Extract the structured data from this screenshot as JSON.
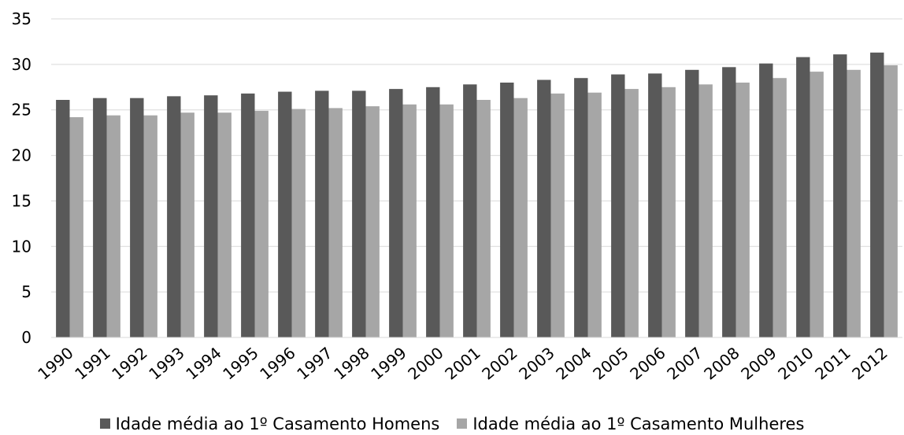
{
  "chart_data": {
    "type": "bar",
    "categories": [
      "1990",
      "1991",
      "1992",
      "1993",
      "1994",
      "1995",
      "1996",
      "1997",
      "1998",
      "1999",
      "2000",
      "2001",
      "2002",
      "2003",
      "2004",
      "2005",
      "2006",
      "2007",
      "2008",
      "2009",
      "2010",
      "2011",
      "2012"
    ],
    "series": [
      {
        "name": "Idade média ao 1º Casamento Homens",
        "color": "#595959",
        "values": [
          26.1,
          26.3,
          26.3,
          26.5,
          26.6,
          26.8,
          27.0,
          27.1,
          27.1,
          27.3,
          27.5,
          27.8,
          28.0,
          28.3,
          28.5,
          28.9,
          29.0,
          29.4,
          29.7,
          30.1,
          30.8,
          31.1,
          31.3
        ]
      },
      {
        "name": "Idade média ao 1º Casamento Mulheres",
        "color": "#a6a6a6",
        "values": [
          24.2,
          24.4,
          24.4,
          24.7,
          24.7,
          24.9,
          25.1,
          25.2,
          25.4,
          25.6,
          25.6,
          26.1,
          26.3,
          26.8,
          26.9,
          27.3,
          27.5,
          27.8,
          28.0,
          28.5,
          29.2,
          29.4,
          29.9
        ]
      }
    ],
    "yticks": [
      0,
      5,
      10,
      15,
      20,
      25,
      30,
      35
    ],
    "ylim": [
      0,
      35
    ],
    "grid": true,
    "legend_position": "bottom",
    "title": "",
    "xlabel": "",
    "ylabel": ""
  }
}
